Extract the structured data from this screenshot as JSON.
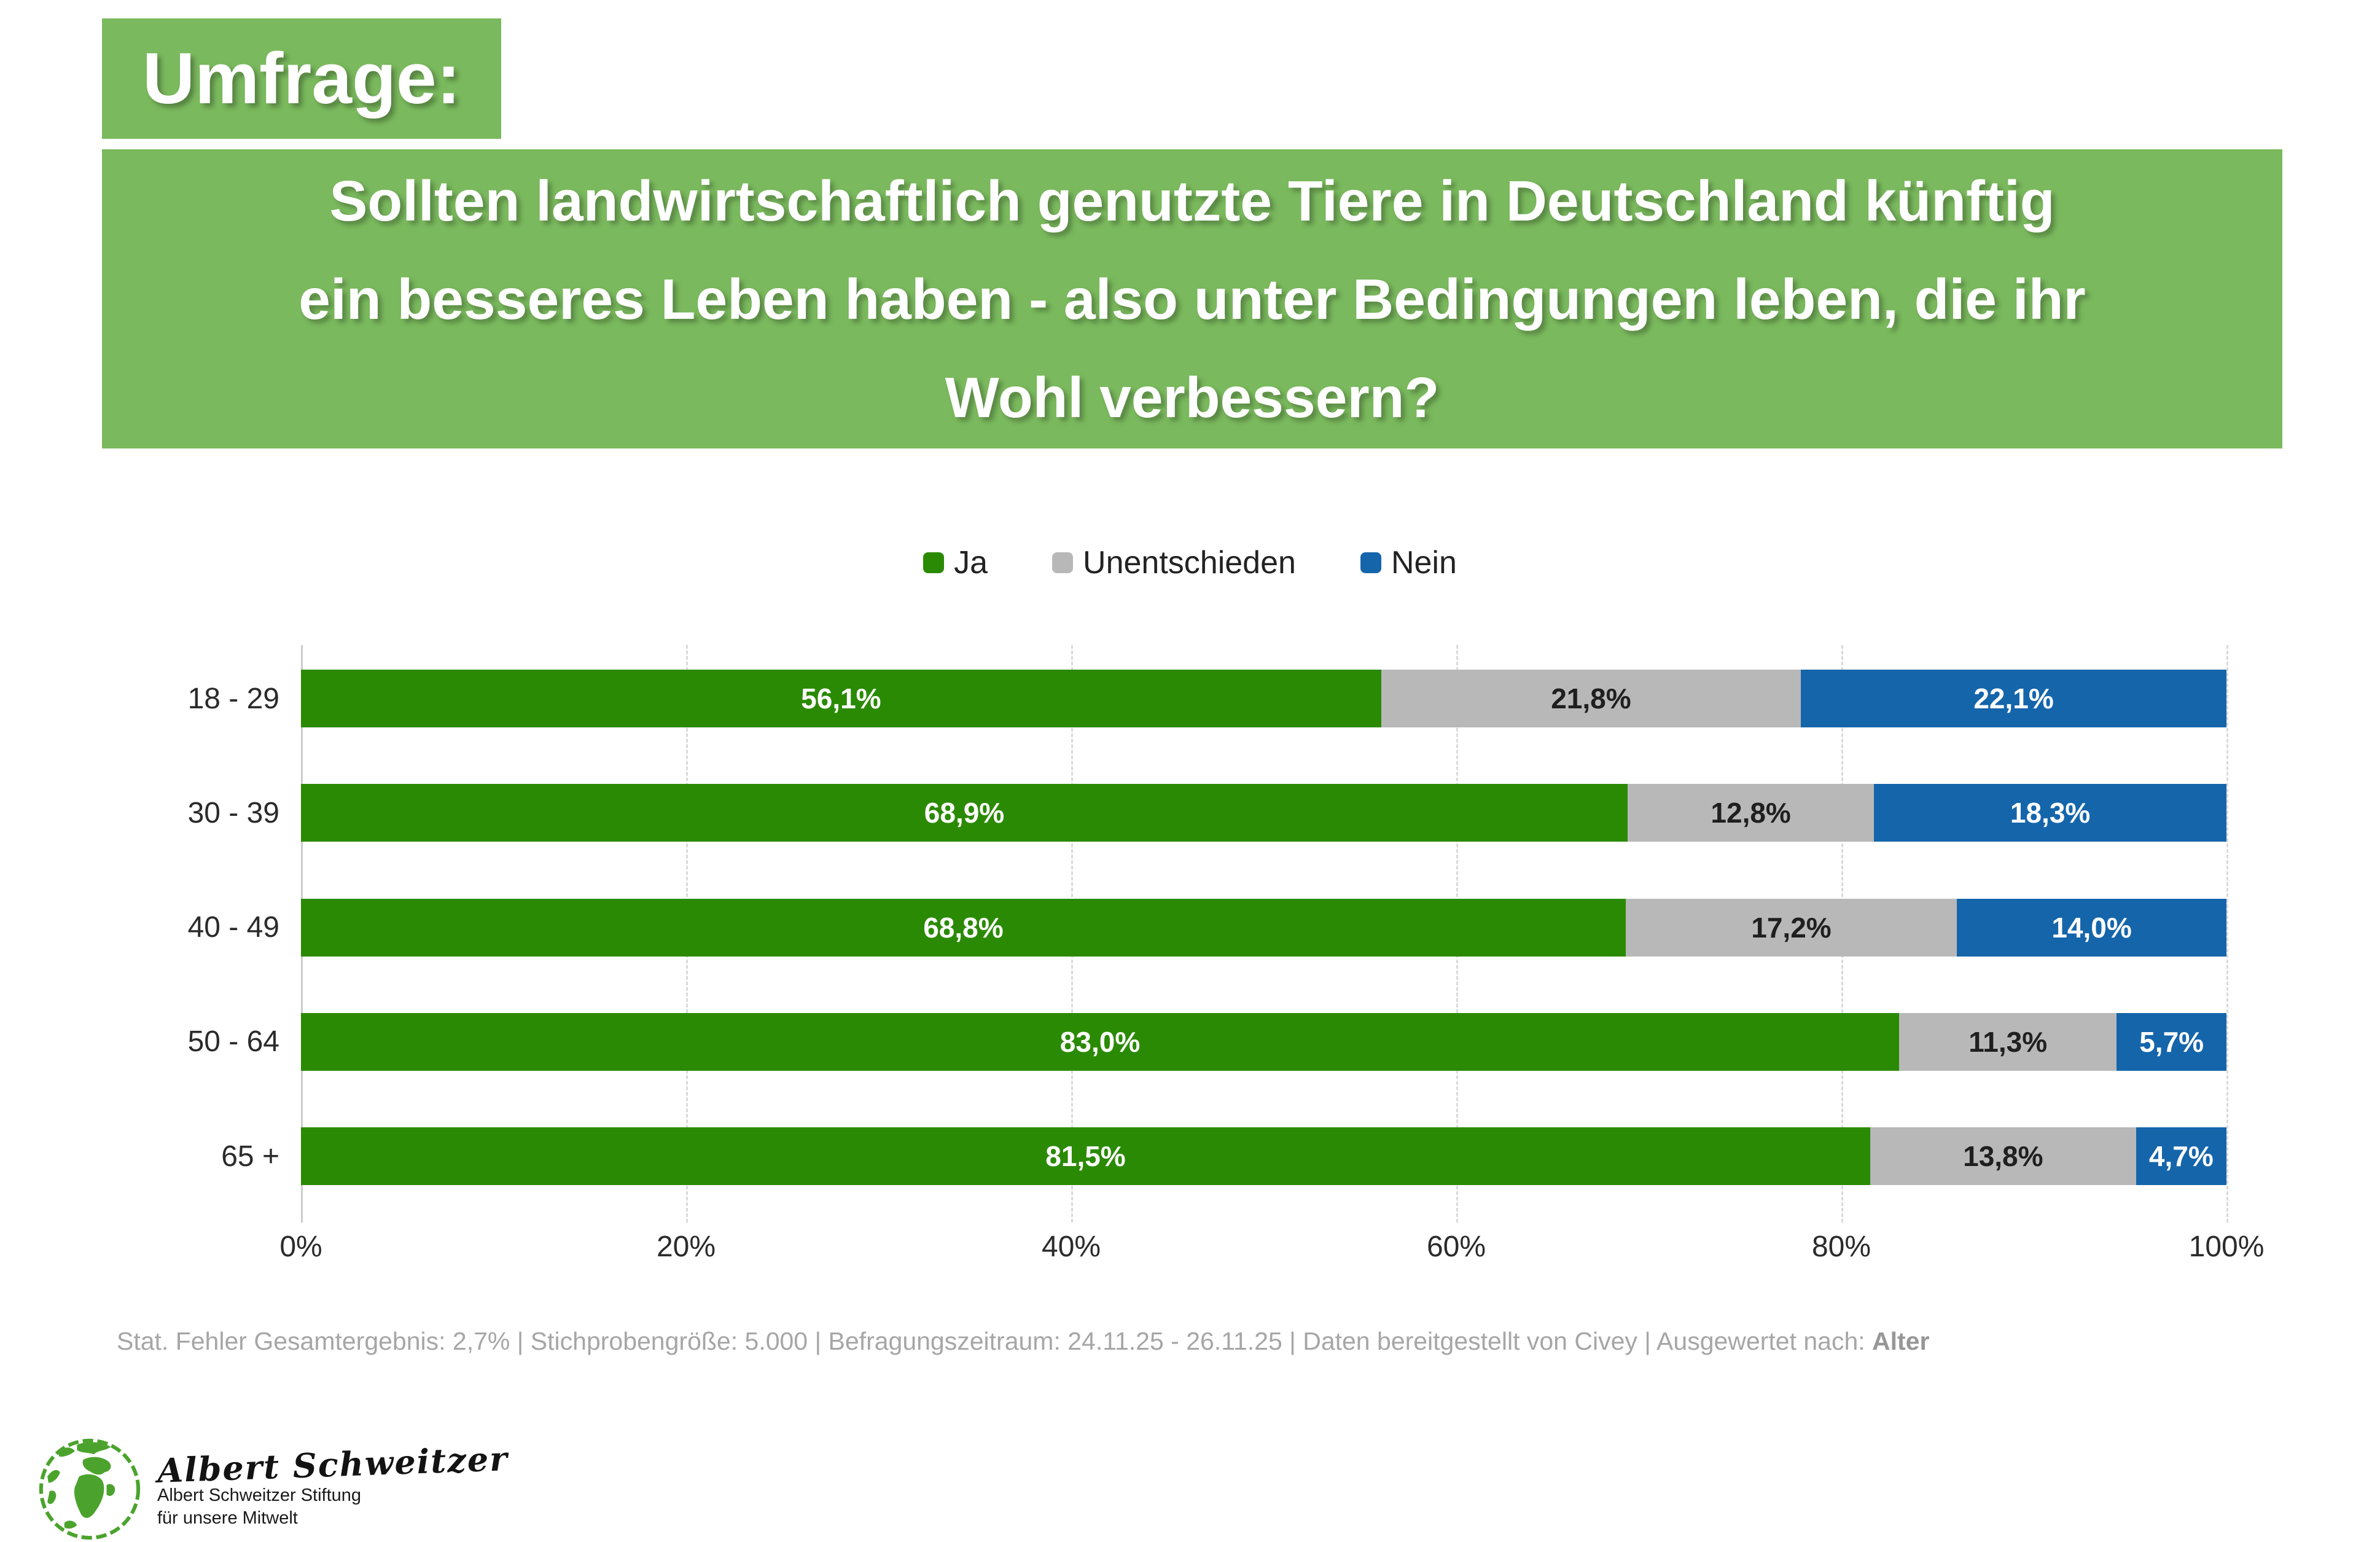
{
  "colors": {
    "brand_green": "#7ab95d",
    "bar_green": "#2b8a04",
    "bar_gray": "#b8b8b8",
    "bar_blue": "#1565ab",
    "grid": "#dadada",
    "footer_text": "#a6a6a6"
  },
  "header": {
    "badge": "Umfrage:",
    "question": "Sollten landwirtschaftlich genutzte Tiere in Deutschland künftig\nein besseres Leben haben - also unter Bedingungen leben, die ihr\nWohl verbessern?"
  },
  "chart_data": {
    "type": "bar",
    "orientation": "horizontal",
    "stacked": true,
    "categories": [
      "18 - 29",
      "30 - 39",
      "40 - 49",
      "50 - 64",
      "65 +"
    ],
    "series": [
      {
        "name": "Ja",
        "color": "#2b8a04",
        "label_color": "#ffffff",
        "values": [
          56.1,
          68.9,
          68.8,
          83.0,
          81.5
        ],
        "labels": [
          "56,1%",
          "68,9%",
          "68,8%",
          "83,0%",
          "81,5%"
        ]
      },
      {
        "name": "Unentschieden",
        "color": "#b8b8b8",
        "label_color": "#1f1f1f",
        "values": [
          21.8,
          12.8,
          17.2,
          11.3,
          13.8
        ],
        "labels": [
          "21,8%",
          "12,8%",
          "17,2%",
          "11,3%",
          "13,8%"
        ]
      },
      {
        "name": "Nein",
        "color": "#1565ab",
        "label_color": "#ffffff",
        "values": [
          22.1,
          18.3,
          14.0,
          5.7,
          4.7
        ],
        "labels": [
          "22,1%",
          "18,3%",
          "14,0%",
          "5,7%",
          "4,7%"
        ]
      }
    ],
    "x_ticks": [
      "0%",
      "20%",
      "40%",
      "60%",
      "80%",
      "100%"
    ],
    "xlim": [
      0,
      100
    ],
    "legend_position": "top",
    "grid": "dashed-vertical"
  },
  "footer": {
    "stats_prefix": "Stat. Fehler Gesamtergebnis: 2,7% | Stichprobengröße: 5.000 | Befragungszeitraum: 24.11.25 - 26.11.25 | Daten bereitgestellt von Civey | Ausgewertet nach: ",
    "stats_bold": "Alter"
  },
  "logo": {
    "signature": "Albert Schweitzer",
    "org_line1": "Albert Schweitzer Stiftung",
    "org_line2": "für unsere Mitwelt"
  }
}
